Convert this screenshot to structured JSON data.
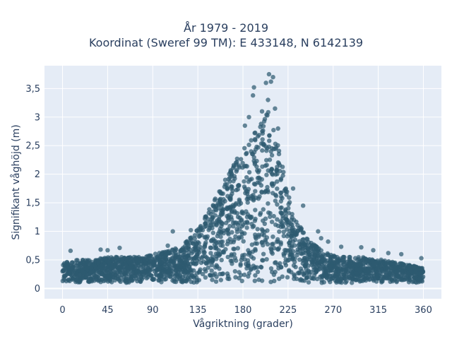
{
  "chart_data": {
    "type": "scatter",
    "title_line1": "År 1979 - 2019",
    "title_line2": "Koordinat (Sweref 99 TM): E 433148, N 6142139",
    "xlabel": "Vågriktning (grader)",
    "ylabel": "Signifikant våghöjd (m)",
    "xlim": [
      -18,
      378
    ],
    "ylim": [
      -0.18,
      3.9
    ],
    "x_ticks": [
      0,
      45,
      90,
      135,
      180,
      225,
      270,
      315,
      360
    ],
    "x_tick_labels": [
      "0",
      "45",
      "90",
      "135",
      "180",
      "225",
      "270",
      "315",
      "360"
    ],
    "y_ticks": [
      0,
      0.5,
      1,
      1.5,
      2,
      2.5,
      3,
      3.5
    ],
    "y_tick_labels": [
      "0",
      "0,5",
      "1",
      "1,5",
      "2",
      "2,5",
      "3",
      "3,5"
    ],
    "grid": true,
    "marker_color": "#2e5a70",
    "background_color": "#e5ecf6",
    "envelope": {
      "direction": [
        0,
        15,
        30,
        45,
        60,
        75,
        90,
        105,
        120,
        135,
        150,
        165,
        180,
        190,
        200,
        205,
        210,
        220,
        230,
        245,
        260,
        275,
        290,
        305,
        320,
        335,
        350,
        360
      ],
      "upper_hs": [
        0.45,
        0.5,
        0.5,
        0.55,
        0.55,
        0.55,
        0.6,
        0.65,
        0.75,
        1.05,
        1.5,
        2.0,
        2.45,
        2.7,
        2.95,
        3.1,
        2.85,
        2.15,
        1.3,
        0.85,
        0.65,
        0.55,
        0.55,
        0.55,
        0.5,
        0.45,
        0.4,
        0.35
      ]
    },
    "outliers": [
      {
        "x": 8,
        "y": 0.66
      },
      {
        "x": 38,
        "y": 0.68
      },
      {
        "x": 45,
        "y": 0.67
      },
      {
        "x": 57,
        "y": 0.71
      },
      {
        "x": 105,
        "y": 0.75
      },
      {
        "x": 110,
        "y": 1.0
      },
      {
        "x": 128,
        "y": 1.02
      },
      {
        "x": 143,
        "y": 1.15
      },
      {
        "x": 168,
        "y": 2.05
      },
      {
        "x": 176,
        "y": 2.15
      },
      {
        "x": 182,
        "y": 2.85
      },
      {
        "x": 186,
        "y": 3.0
      },
      {
        "x": 190,
        "y": 3.38
      },
      {
        "x": 191,
        "y": 3.52
      },
      {
        "x": 199,
        "y": 3.1
      },
      {
        "x": 203,
        "y": 3.6
      },
      {
        "x": 205,
        "y": 3.3
      },
      {
        "x": 206,
        "y": 3.75
      },
      {
        "x": 208,
        "y": 3.62
      },
      {
        "x": 210,
        "y": 3.7
      },
      {
        "x": 212,
        "y": 3.15
      },
      {
        "x": 215,
        "y": 2.8
      },
      {
        "x": 230,
        "y": 1.75
      },
      {
        "x": 240,
        "y": 1.45
      },
      {
        "x": 255,
        "y": 1.0
      },
      {
        "x": 258,
        "y": 0.88
      },
      {
        "x": 265,
        "y": 0.82
      },
      {
        "x": 278,
        "y": 0.73
      },
      {
        "x": 298,
        "y": 0.72
      },
      {
        "x": 310,
        "y": 0.67
      },
      {
        "x": 325,
        "y": 0.62
      },
      {
        "x": 338,
        "y": 0.6
      },
      {
        "x": 358,
        "y": 0.53
      }
    ]
  }
}
